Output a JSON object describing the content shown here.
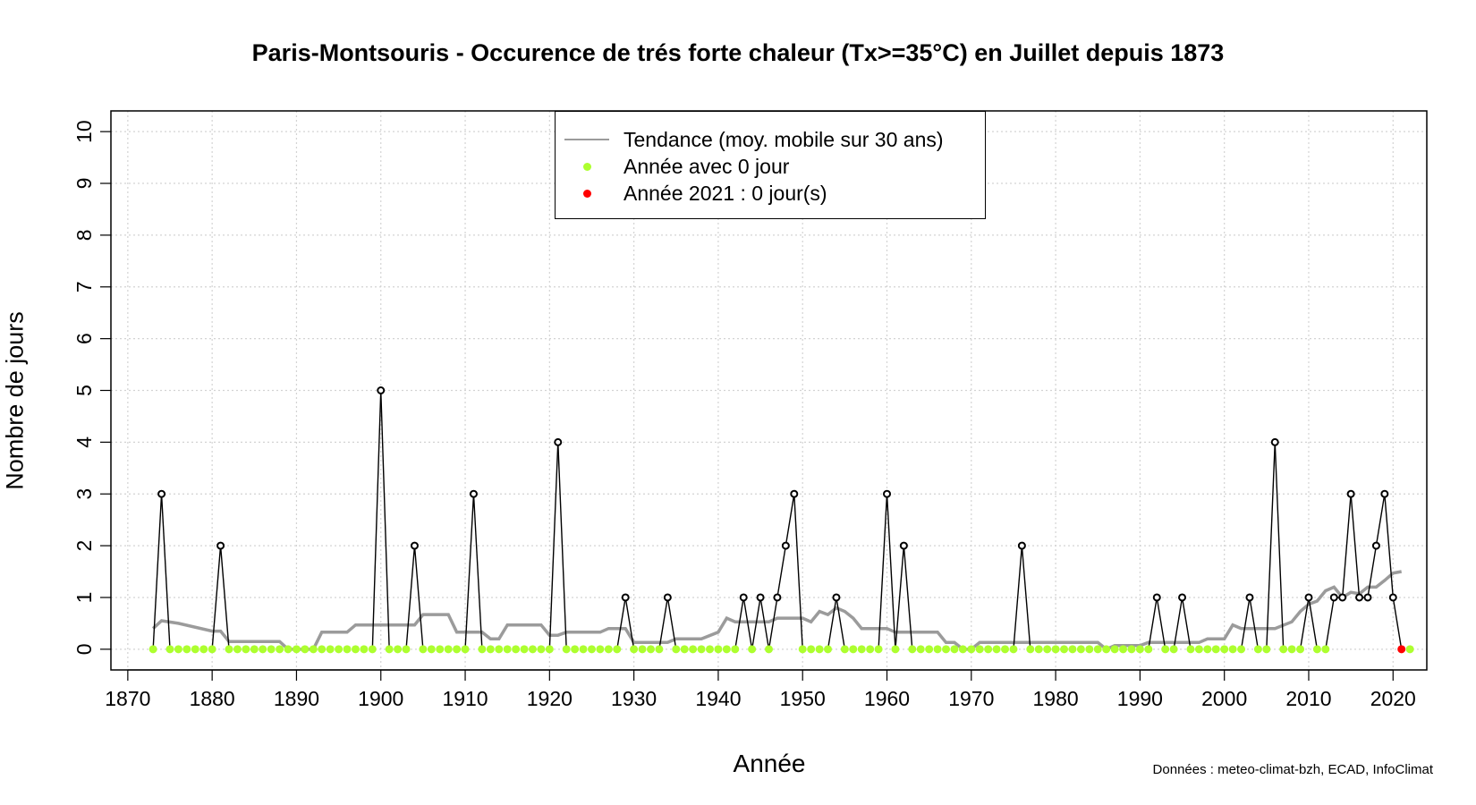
{
  "chart_data": {
    "type": "line",
    "title": "Paris-Montsouris - Occurence de trés forte chaleur (Tx>=35°C) en Juillet depuis 1873",
    "xlabel": "Année",
    "ylabel": "Nombre de jours",
    "xlim": [
      1868,
      2024
    ],
    "ylim": [
      -0.4,
      10.4
    ],
    "x_ticks": [
      1870,
      1880,
      1890,
      1900,
      1910,
      1920,
      1930,
      1940,
      1950,
      1960,
      1970,
      1980,
      1990,
      2000,
      2010,
      2020
    ],
    "x_tick_labels": [
      "1870",
      "1880",
      "1890",
      "1900",
      "1910",
      "1920",
      "1930",
      "1940",
      "1950",
      "1960",
      "1970",
      "1980",
      "1990",
      "2000",
      "2010",
      "2020"
    ],
    "y_ticks": [
      0,
      1,
      2,
      3,
      4,
      5,
      6,
      7,
      8,
      9,
      10
    ],
    "y_tick_labels": [
      "0",
      "1",
      "2",
      "3",
      "4",
      "5",
      "6",
      "7",
      "8",
      "9",
      "10"
    ],
    "grid": true,
    "legend_position": "top-center",
    "series": [
      {
        "name": "Nombre de jours",
        "x_start": 1873,
        "values": [
          0,
          3,
          0,
          0,
          0,
          0,
          0,
          0,
          2,
          0,
          0,
          0,
          0,
          0,
          0,
          0,
          0,
          0,
          0,
          0,
          0,
          0,
          0,
          0,
          0,
          0,
          0,
          5,
          0,
          0,
          0,
          2,
          0,
          0,
          0,
          0,
          0,
          0,
          3,
          0,
          0,
          0,
          0,
          0,
          0,
          0,
          0,
          0,
          4,
          0,
          0,
          0,
          0,
          0,
          0,
          0,
          1,
          0,
          0,
          0,
          0,
          1,
          0,
          0,
          0,
          0,
          0,
          0,
          0,
          0,
          1,
          0,
          1,
          0,
          1,
          2,
          3,
          0,
          0,
          0,
          0,
          1,
          0,
          0,
          0,
          0,
          0,
          3,
          0,
          2,
          0,
          0,
          0,
          0,
          0,
          0,
          0,
          0,
          0,
          0,
          0,
          0,
          0,
          0,
          0,
          0,
          0,
          0,
          0,
          0,
          0,
          0,
          0,
          0,
          0,
          0,
          0,
          0,
          0,
          0,
          0,
          0,
          0,
          0,
          0,
          0,
          0,
          0,
          0,
          0,
          0,
          0,
          0,
          0,
          0,
          0,
          0,
          0,
          0,
          0,
          0,
          0,
          0,
          0,
          0,
          0,
          0,
          0,
          0,
          0
        ],
        "nonzero_override": {
          "1973": 0,
          "1974": 0,
          "1975": 0,
          "1976": 2,
          "1992": 1,
          "1995": 1,
          "2003": 1,
          "2006": 4,
          "2010": 1,
          "2013": 1,
          "2014": 1,
          "2015": 3,
          "2016": 1,
          "2017": 1,
          "2018": 2,
          "2019": 3,
          "2020": 1,
          "2021": 0
        },
        "line_color": "#000000"
      },
      {
        "name": "Tendance (moy. mobile sur 30 ans)",
        "points": [
          [
            1873,
            0.4
          ],
          [
            1874,
            0.55
          ],
          [
            1876,
            0.5
          ],
          [
            1880,
            0.35
          ],
          [
            1881,
            0.35
          ],
          [
            1882,
            0.15
          ],
          [
            1888,
            0.15
          ],
          [
            1889,
            0.0
          ],
          [
            1892,
            0.0
          ],
          [
            1893,
            0.33
          ],
          [
            1896,
            0.33
          ],
          [
            1897,
            0.47
          ],
          [
            1904,
            0.47
          ],
          [
            1905,
            0.67
          ],
          [
            1908,
            0.67
          ],
          [
            1909,
            0.33
          ],
          [
            1912,
            0.33
          ],
          [
            1913,
            0.2
          ],
          [
            1914,
            0.2
          ],
          [
            1915,
            0.47
          ],
          [
            1919,
            0.47
          ],
          [
            1920,
            0.27
          ],
          [
            1921,
            0.27
          ],
          [
            1922,
            0.33
          ],
          [
            1926,
            0.33
          ],
          [
            1927,
            0.4
          ],
          [
            1929,
            0.4
          ],
          [
            1930,
            0.13
          ],
          [
            1934,
            0.13
          ],
          [
            1935,
            0.2
          ],
          [
            1938,
            0.2
          ],
          [
            1940,
            0.33
          ],
          [
            1941,
            0.6
          ],
          [
            1942,
            0.53
          ],
          [
            1946,
            0.53
          ],
          [
            1947,
            0.6
          ],
          [
            1950,
            0.6
          ],
          [
            1951,
            0.53
          ],
          [
            1952,
            0.73
          ],
          [
            1953,
            0.67
          ],
          [
            1954,
            0.8
          ],
          [
            1955,
            0.73
          ],
          [
            1956,
            0.6
          ],
          [
            1957,
            0.4
          ],
          [
            1960,
            0.4
          ],
          [
            1961,
            0.33
          ],
          [
            1966,
            0.33
          ],
          [
            1967,
            0.13
          ],
          [
            1968,
            0.13
          ],
          [
            1969,
            0.0
          ],
          [
            1970,
            0.0
          ],
          [
            1971,
            0.13
          ],
          [
            1985,
            0.13
          ],
          [
            1986,
            0.0
          ],
          [
            1987,
            0.07
          ],
          [
            1990,
            0.07
          ],
          [
            1991,
            0.13
          ],
          [
            1997,
            0.13
          ],
          [
            1998,
            0.2
          ],
          [
            2000,
            0.2
          ],
          [
            2001,
            0.47
          ],
          [
            2002,
            0.4
          ],
          [
            2006,
            0.4
          ],
          [
            2008,
            0.53
          ],
          [
            2009,
            0.73
          ],
          [
            2010,
            0.87
          ],
          [
            2011,
            0.93
          ],
          [
            2012,
            1.13
          ],
          [
            2013,
            1.2
          ],
          [
            2014,
            1.0
          ],
          [
            2015,
            1.1
          ],
          [
            2016,
            1.07
          ],
          [
            2017,
            1.2
          ],
          [
            2018,
            1.2
          ],
          [
            2019,
            1.33
          ],
          [
            2020,
            1.47
          ],
          [
            2021,
            1.5
          ]
        ],
        "color": "#9b9b9b"
      }
    ],
    "zero_point_color": "#adff2f",
    "highlight": {
      "year": 2021,
      "value": 0,
      "color": "#ff0000"
    },
    "legend": [
      {
        "label": "Tendance (moy. mobile sur 30 ans)",
        "kind": "line",
        "color": "#9b9b9b"
      },
      {
        "label": "Année avec 0 jour",
        "kind": "dot",
        "color": "#adff2f"
      },
      {
        "label": "Année 2021 : 0 jour(s)",
        "kind": "dot",
        "color": "#ff0000"
      }
    ]
  },
  "source_note": "Données : meteo-climat-bzh, ECAD, InfoClimat"
}
